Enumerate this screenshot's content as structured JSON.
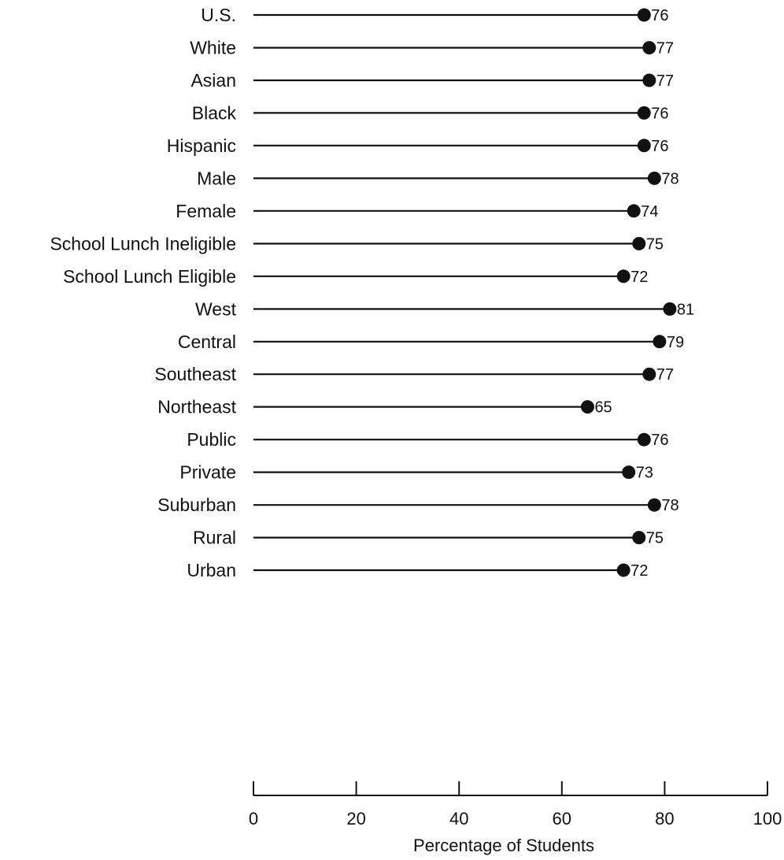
{
  "chart_data": {
    "type": "lollipop",
    "xlabel": "Percentage of Students",
    "xlim": [
      0,
      100
    ],
    "xticks": [
      0,
      20,
      40,
      60,
      80,
      100
    ],
    "grid": false,
    "legend": "none",
    "colors": {
      "line": "#111111",
      "marker": "#111111"
    },
    "groups": [
      {
        "items": [
          {
            "label": "U.S.",
            "value": 76
          }
        ]
      },
      {
        "items": [
          {
            "label": "White",
            "value": 77
          },
          {
            "label": "Asian",
            "value": 77
          },
          {
            "label": "Black",
            "value": 76
          },
          {
            "label": "Hispanic",
            "value": 76
          }
        ]
      },
      {
        "items": [
          {
            "label": "Male",
            "value": 78
          },
          {
            "label": "Female",
            "value": 74
          }
        ]
      },
      {
        "items": [
          {
            "label": "School Lunch Ineligible",
            "value": 75
          },
          {
            "label": "School Lunch Eligible",
            "value": 72
          }
        ]
      },
      {
        "items": [
          {
            "label": "West",
            "value": 81
          },
          {
            "label": "Central",
            "value": 79
          },
          {
            "label": "Southeast",
            "value": 77
          },
          {
            "label": "Northeast",
            "value": 65
          }
        ]
      },
      {
        "items": [
          {
            "label": "Public",
            "value": 76
          },
          {
            "label": "Private",
            "value": 73
          }
        ]
      },
      {
        "items": [
          {
            "label": "Suburban",
            "value": 78
          },
          {
            "label": "Rural",
            "value": 75
          },
          {
            "label": "Urban",
            "value": 72
          }
        ]
      }
    ]
  }
}
